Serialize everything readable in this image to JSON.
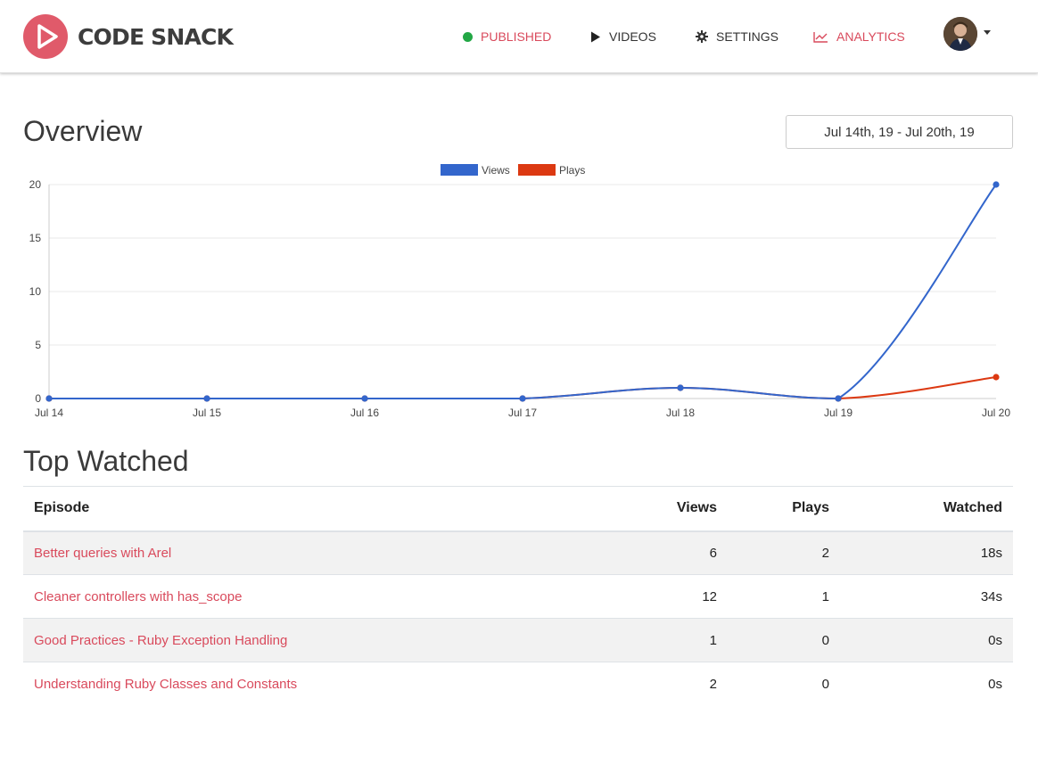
{
  "brand": {
    "name": "CODE SNACK"
  },
  "nav": {
    "published": "PUBLISHED",
    "videos": "VIDEOS",
    "settings": "SETTINGS",
    "analytics": "ANALYTICS"
  },
  "overview": {
    "title": "Overview",
    "date_range": "Jul 14th, 19 - Jul 20th, 19"
  },
  "chart_data": {
    "type": "line",
    "title": "",
    "categories": [
      "Jul 14",
      "Jul 15",
      "Jul 16",
      "Jul 17",
      "Jul 18",
      "Jul 19",
      "Jul 20"
    ],
    "series": [
      {
        "name": "Views",
        "color": "#3366cc",
        "values": [
          0,
          0,
          0,
          0,
          1,
          0,
          20
        ]
      },
      {
        "name": "Plays",
        "color": "#dc3912",
        "values": [
          0,
          0,
          0,
          0,
          1,
          0,
          2
        ]
      }
    ],
    "y_ticks": [
      0,
      5,
      10,
      15,
      20
    ],
    "ylim": [
      0,
      20
    ],
    "xlabel": "",
    "ylabel": "",
    "legend": "top-center",
    "grid": true
  },
  "top_watched": {
    "title": "Top Watched",
    "columns": {
      "episode": "Episode",
      "views": "Views",
      "plays": "Plays",
      "watched": "Watched"
    },
    "rows": [
      {
        "episode": "Better queries with Arel",
        "views": "6",
        "plays": "2",
        "watched": "18s"
      },
      {
        "episode": "Cleaner controllers with has_scope",
        "views": "12",
        "plays": "1",
        "watched": "34s"
      },
      {
        "episode": "Good Practices - Ruby Exception Handling",
        "views": "1",
        "plays": "0",
        "watched": "0s"
      },
      {
        "episode": "Understanding Ruby Classes and Constants",
        "views": "2",
        "plays": "0",
        "watched": "0s"
      }
    ]
  },
  "colors": {
    "accent": "#d94a5c",
    "published": "#22a745"
  }
}
